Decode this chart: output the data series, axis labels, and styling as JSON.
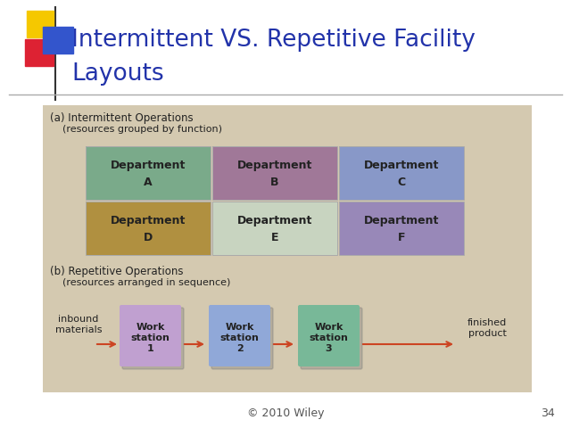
{
  "title_line1": "Intermittent VS. Repetitive Facility",
  "title_line2": "Layouts",
  "title_color": "#2233aa",
  "bg_color": "#ffffff",
  "content_bg": "#d4c9b0",
  "footer_text": "© 2010 Wiley",
  "slide_number": "34",
  "dept_a": {
    "label": "Department\nA",
    "color": "#7aaa8a"
  },
  "dept_b": {
    "label": "Department\nB",
    "color": "#a07898"
  },
  "dept_c": {
    "label": "Department\nC",
    "color": "#8898c8"
  },
  "dept_d": {
    "label": "Department\nD",
    "color": "#b09040"
  },
  "dept_e": {
    "label": "Department\nE",
    "color": "#c8d4c0"
  },
  "dept_f": {
    "label": "Department\nF",
    "color": "#9888b8"
  },
  "ws1": {
    "label": "Work\nstation\n1",
    "color": "#c0a0d0"
  },
  "ws2": {
    "label": "Work\nstation\n2",
    "color": "#90a8d8"
  },
  "ws3": {
    "label": "Work\nstation\n3",
    "color": "#78b898"
  },
  "section_a_title": "(a) Intermittent Operations",
  "section_a_sub": "    (resources grouped by function)",
  "section_b_title": "(b) Repetitive Operations",
  "section_b_sub": "    (resources arranged in sequence)",
  "inbound_label": "inbound\nmaterials",
  "finished_label": "finished\nproduct",
  "arrow_color": "#cc4422",
  "deco_yellow": "#f5c800",
  "deco_blue": "#3355cc",
  "deco_red": "#dd2233",
  "sep_color": "#aaaaaa",
  "text_dark": "#222222",
  "text_footer": "#555555"
}
